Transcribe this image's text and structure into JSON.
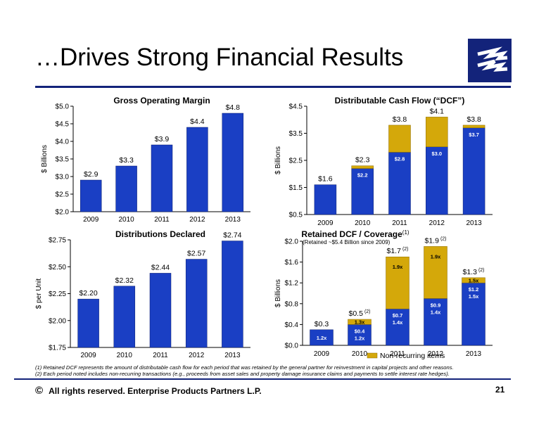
{
  "slide": {
    "title": "…Drives Strong Financial Results",
    "footer": "All rights reserved. Enterprise Products Partners L.P.",
    "copyright_symbol": "©",
    "page_number": "21",
    "footnotes": [
      "(1) Retained DCF represents the amount of distributable cash flow for each period that was retained by the general partner for reinvestment in capital projects and other reasons.",
      "(2) Each period noted includes non-recurring transactions (e.g., proceeds from asset sales and property damage insurance claims and payments to settle interest rate hedges)."
    ],
    "colors": {
      "navy": "#13237a",
      "bar_blue": "#1a3fc4",
      "gold": "#d4a80a"
    }
  },
  "chart_data": [
    {
      "id": "gom",
      "type": "bar",
      "title": "Gross Operating Margin",
      "ylabel": "$ Billions",
      "categories": [
        "2009",
        "2010",
        "2011",
        "2012",
        "2013"
      ],
      "values": [
        2.9,
        3.3,
        3.9,
        4.4,
        4.8
      ],
      "data_labels": [
        "$2.9",
        "$3.3",
        "$3.9",
        "$4.4",
        "$4.8"
      ],
      "ylim": [
        2.0,
        5.0
      ],
      "yticks": [
        2.0,
        2.5,
        3.0,
        3.5,
        4.0,
        4.5,
        5.0
      ],
      "ytick_labels": [
        "$2.0",
        "$2.5",
        "$3.0",
        "$3.5",
        "$4.0",
        "$4.5",
        "$5.0"
      ],
      "grid": false
    },
    {
      "id": "dcf",
      "type": "bar",
      "stacked": true,
      "title": "Distributable Cash Flow (“DCF”)",
      "ylabel": "$ Billions",
      "categories": [
        "2009",
        "2010",
        "2011",
        "2012",
        "2013"
      ],
      "series": [
        {
          "values": [
            1.6,
            2.2,
            2.8,
            3.0,
            3.7
          ],
          "labels": [
            "",
            "$2.2",
            "$2.8",
            "$3.0",
            "$3.7"
          ]
        },
        {
          "values": [
            0.0,
            0.1,
            1.0,
            1.1,
            0.1
          ]
        }
      ],
      "totals": [
        "$1.6",
        "$2.3",
        "$3.8",
        "$4.1",
        "$3.8"
      ],
      "ylim": [
        0.5,
        4.5
      ],
      "yticks": [
        0.5,
        1.5,
        2.5,
        3.5,
        4.5
      ],
      "ytick_labels": [
        "$0.5",
        "$1.5",
        "$2.5",
        "$3.5",
        "$4.5"
      ],
      "grid": false
    },
    {
      "id": "dist",
      "type": "bar",
      "title": "Distributions Declared",
      "ylabel": "$ per Unit",
      "categories": [
        "2009",
        "2010",
        "2011",
        "2012",
        "2013"
      ],
      "values": [
        2.2,
        2.32,
        2.44,
        2.57,
        2.74
      ],
      "data_labels": [
        "$2.20",
        "$2.32",
        "$2.44",
        "$2.57",
        "$2.74"
      ],
      "ylim": [
        1.75,
        2.75
      ],
      "yticks": [
        1.75,
        2.0,
        2.25,
        2.5,
        2.75
      ],
      "ytick_labels": [
        "$1.75",
        "$2.00",
        "$2.25",
        "$2.50",
        "$2.75"
      ],
      "grid": false
    },
    {
      "id": "ret",
      "type": "bar",
      "stacked": true,
      "title": "Retained DCF / Coverage",
      "title_sup": "(1)",
      "subtitle": "(Retained ~$5.4 Billion since 2009)",
      "ylabel": "$ Billions",
      "categories": [
        "2009",
        "2010",
        "2011",
        "2012",
        "2013"
      ],
      "series": [
        {
          "values": [
            0.3,
            0.4,
            0.7,
            0.9,
            1.2
          ],
          "labels": [
            "1.2x",
            "$0.4|1.2x",
            "$0.7|1.4x",
            "$0.9|1.4x",
            "$1.2|1.5x"
          ]
        },
        {
          "name": "Non-recurring items",
          "values": [
            0.0,
            0.1,
            1.0,
            1.0,
            0.1
          ],
          "labels": [
            "",
            "1.3x",
            "1.9x",
            "1.9x",
            "1.5x"
          ]
        }
      ],
      "totals": [
        "$0.3",
        "$0.5",
        "$1.7",
        "$1.9",
        "$1.3"
      ],
      "total_sups": [
        "",
        "(2)",
        "(2)",
        "(2)",
        "(2)"
      ],
      "ylim": [
        0.0,
        2.0
      ],
      "yticks": [
        0.0,
        0.4,
        0.8,
        1.2,
        1.6,
        2.0
      ],
      "ytick_labels": [
        "$0.0",
        "$0.4",
        "$0.8",
        "$1.2",
        "$1.6",
        "$2.0"
      ],
      "legend": "bottom",
      "grid": false
    }
  ]
}
